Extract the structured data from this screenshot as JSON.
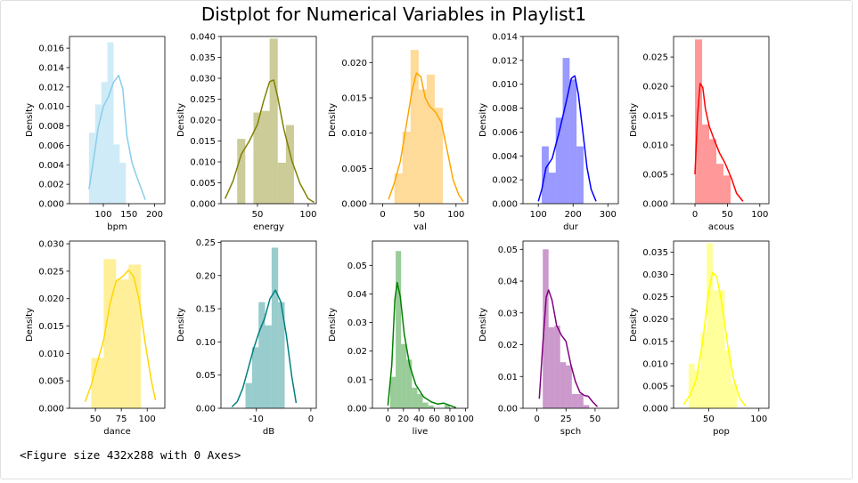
{
  "figure": {
    "title": "Distplot for Numerical Variables in Playlist1",
    "console_text": "<Figure size 432x288 with 0 Axes>"
  },
  "chart_data": [
    {
      "type": "area",
      "xlabel": "bpm",
      "ylabel": "Density",
      "color": "#87ceeb",
      "xlim": [
        34,
        220
      ],
      "ylim": [
        0,
        0.0172
      ],
      "xticks": [
        100,
        150,
        200
      ],
      "ytick_labels": [
        "0.000",
        "0.002",
        "0.004",
        "0.006",
        "0.008",
        "0.010",
        "0.012",
        "0.014",
        "0.016"
      ],
      "bins": [
        [
          72,
          0.0073
        ],
        [
          84,
          0.0102
        ],
        [
          96,
          0.0125
        ],
        [
          108,
          0.0166
        ],
        [
          120,
          0.0061
        ],
        [
          132,
          0.0042
        ],
        [
          144,
          0
        ]
      ],
      "bin_end": 156,
      "kde": [
        [
          72,
          0.0015
        ],
        [
          80,
          0.0042
        ],
        [
          90,
          0.0078
        ],
        [
          100,
          0.01
        ],
        [
          110,
          0.011
        ],
        [
          120,
          0.0125
        ],
        [
          130,
          0.0132
        ],
        [
          138,
          0.0118
        ],
        [
          146,
          0.007
        ],
        [
          156,
          0.0042
        ],
        [
          165,
          0.0028
        ],
        [
          175,
          0.0014
        ],
        [
          182,
          0.0004
        ]
      ]
    },
    {
      "type": "area",
      "xlabel": "energy",
      "ylabel": "Density",
      "color": "#808000",
      "xlim": [
        14,
        108
      ],
      "ylim": [
        0,
        0.04
      ],
      "xticks": [
        50,
        100
      ],
      "ytick_labels": [
        "0.000",
        "0.005",
        "0.010",
        "0.015",
        "0.020",
        "0.025",
        "0.030",
        "0.035",
        "0.040"
      ],
      "bins": [
        [
          30,
          0.0155
        ],
        [
          38,
          0
        ],
        [
          46,
          0.0218
        ],
        [
          54,
          0.0222
        ],
        [
          62,
          0.0395
        ],
        [
          70,
          0.0098
        ],
        [
          78,
          0.0188
        ]
      ],
      "bin_end": 86,
      "kde": [
        [
          18,
          0.0012
        ],
        [
          26,
          0.0055
        ],
        [
          34,
          0.0118
        ],
        [
          42,
          0.015
        ],
        [
          50,
          0.019
        ],
        [
          56,
          0.0245
        ],
        [
          62,
          0.0292
        ],
        [
          66,
          0.0296
        ],
        [
          70,
          0.0255
        ],
        [
          76,
          0.0178
        ],
        [
          84,
          0.0102
        ],
        [
          92,
          0.0048
        ],
        [
          100,
          0.0012
        ],
        [
          106,
          0.0003
        ]
      ]
    },
    {
      "type": "area",
      "xlabel": "val",
      "ylabel": "Density",
      "color": "#ffa500",
      "xlim": [
        -14,
        116
      ],
      "ylim": [
        0,
        0.0237
      ],
      "xticks": [
        0,
        50,
        100
      ],
      "ytick_labels": [
        "0.000",
        "0.005",
        "0.010",
        "0.015",
        "0.020"
      ],
      "bins": [
        [
          16,
          0.0043
        ],
        [
          27,
          0.0102
        ],
        [
          38,
          0.0218
        ],
        [
          49,
          0.0162
        ],
        [
          60,
          0.0183
        ],
        [
          71,
          0.0136
        ]
      ],
      "bin_end": 82,
      "kde": [
        [
          8,
          0.0006
        ],
        [
          16,
          0.003
        ],
        [
          24,
          0.006
        ],
        [
          32,
          0.011
        ],
        [
          40,
          0.016
        ],
        [
          46,
          0.0185
        ],
        [
          52,
          0.018
        ],
        [
          58,
          0.015
        ],
        [
          64,
          0.0138
        ],
        [
          72,
          0.013
        ],
        [
          80,
          0.0115
        ],
        [
          88,
          0.0075
        ],
        [
          96,
          0.0034
        ],
        [
          104,
          0.0012
        ],
        [
          110,
          0.0003
        ]
      ]
    },
    {
      "type": "area",
      "xlabel": "dur",
      "ylabel": "Density",
      "color": "#0000ff",
      "xlim": [
        56,
        330
      ],
      "ylim": [
        0,
        0.014
      ],
      "xticks": [
        100,
        200,
        300
      ],
      "ytick_labels": [
        "0.000",
        "0.002",
        "0.004",
        "0.006",
        "0.008",
        "0.010",
        "0.012",
        "0.014"
      ],
      "bins": [
        [
          110,
          0.0048
        ],
        [
          130,
          0.0026
        ],
        [
          150,
          0.0072
        ],
        [
          170,
          0.0122
        ],
        [
          190,
          0.0104
        ],
        [
          210,
          0.0048
        ],
        [
          230,
          0
        ]
      ],
      "bin_end": 250,
      "kde": [
        [
          100,
          0.0002
        ],
        [
          110,
          0.0012
        ],
        [
          122,
          0.003
        ],
        [
          140,
          0.0038
        ],
        [
          160,
          0.006
        ],
        [
          180,
          0.0085
        ],
        [
          195,
          0.0105
        ],
        [
          205,
          0.0107
        ],
        [
          215,
          0.0092
        ],
        [
          228,
          0.006
        ],
        [
          240,
          0.003
        ],
        [
          252,
          0.0012
        ],
        [
          266,
          0.0002
        ]
      ]
    },
    {
      "type": "area",
      "xlabel": "acous",
      "ylabel": "Density",
      "color": "#ff0000",
      "xlim": [
        -33,
        114
      ],
      "ylim": [
        0,
        0.0285
      ],
      "xticks": [
        0,
        50,
        100
      ],
      "ytick_labels": [
        "0.000",
        "0.005",
        "0.010",
        "0.015",
        "0.020",
        "0.025"
      ],
      "bins": [
        [
          0,
          0.028
        ],
        [
          11,
          0.0135
        ],
        [
          22,
          0.011
        ],
        [
          33,
          0.0068
        ],
        [
          44,
          0.0048
        ]
      ],
      "bin_end": 55,
      "kde": [
        [
          0,
          0.005
        ],
        [
          4,
          0.015
        ],
        [
          8,
          0.0205
        ],
        [
          12,
          0.0198
        ],
        [
          16,
          0.0162
        ],
        [
          22,
          0.0132
        ],
        [
          30,
          0.0108
        ],
        [
          38,
          0.0086
        ],
        [
          46,
          0.007
        ],
        [
          56,
          0.0044
        ],
        [
          64,
          0.0018
        ],
        [
          74,
          0.0004
        ]
      ]
    },
    {
      "type": "area",
      "xlabel": "dance",
      "ylabel": "Density",
      "color": "#ffd700",
      "xlim": [
        25,
        117
      ],
      "ylim": [
        0,
        0.0305
      ],
      "xticks": [
        50,
        75,
        100
      ],
      "ytick_labels": [
        "0.000",
        "0.005",
        "0.010",
        "0.015",
        "0.020",
        "0.025",
        "0.030"
      ],
      "bins": [
        [
          46,
          0.0092
        ],
        [
          58,
          0.0272
        ],
        [
          70,
          0.0235
        ],
        [
          82,
          0.0262
        ],
        [
          94,
          0
        ]
      ],
      "bin_end": 106,
      "kde": [
        [
          40,
          0.0012
        ],
        [
          46,
          0.0042
        ],
        [
          52,
          0.0085
        ],
        [
          58,
          0.0125
        ],
        [
          64,
          0.019
        ],
        [
          70,
          0.0232
        ],
        [
          76,
          0.024
        ],
        [
          82,
          0.0252
        ],
        [
          87,
          0.024
        ],
        [
          92,
          0.02
        ],
        [
          98,
          0.012
        ],
        [
          104,
          0.005
        ],
        [
          108,
          0.0015
        ]
      ]
    },
    {
      "type": "area",
      "xlabel": "dB",
      "ylabel": "Density",
      "color": "#008080",
      "xlim": [
        -16.5,
        1
      ],
      "ylim": [
        0,
        0.252
      ],
      "xticks": [
        -10,
        0
      ],
      "ytick_labels": [
        "0.00",
        "0.05",
        "0.10",
        "0.15",
        "0.20",
        "0.25"
      ],
      "bins": [
        [
          -12,
          0.038
        ],
        [
          -10.8,
          0.092
        ],
        [
          -9.6,
          0.16
        ],
        [
          -8.4,
          0.125
        ],
        [
          -7.2,
          0.242
        ],
        [
          -6,
          0.16
        ]
      ],
      "bin_end": -4.8,
      "kde": [
        [
          -14.5,
          0.002
        ],
        [
          -13.5,
          0.01
        ],
        [
          -12.5,
          0.03
        ],
        [
          -11.5,
          0.06
        ],
        [
          -10.5,
          0.09
        ],
        [
          -9.5,
          0.115
        ],
        [
          -8.5,
          0.135
        ],
        [
          -7.5,
          0.165
        ],
        [
          -6.5,
          0.178
        ],
        [
          -5.5,
          0.16
        ],
        [
          -4.5,
          0.11
        ],
        [
          -3.5,
          0.048
        ],
        [
          -2.7,
          0.008
        ]
      ]
    },
    {
      "type": "area",
      "xlabel": "live",
      "ylabel": "Density",
      "color": "#008000",
      "xlim": [
        -20,
        103
      ],
      "ylim": [
        0,
        0.0585
      ],
      "xticks": [
        0,
        20,
        40,
        60,
        80,
        100
      ],
      "ytick_labels": [
        "0.00",
        "0.01",
        "0.02",
        "0.03",
        "0.04",
        "0.05"
      ],
      "bins": [
        [
          3,
          0.011
        ],
        [
          10,
          0.055
        ],
        [
          17,
          0.0225
        ],
        [
          24,
          0.017
        ],
        [
          31,
          0.0072
        ],
        [
          38,
          0.005
        ],
        [
          45,
          0.002
        ],
        [
          52,
          0.001
        ],
        [
          59,
          0
        ],
        [
          66,
          0
        ],
        [
          73,
          0.0012
        ]
      ],
      "bin_end": 80,
      "kde": [
        [
          0,
          0.001
        ],
        [
          5,
          0.015
        ],
        [
          9,
          0.038
        ],
        [
          12,
          0.044
        ],
        [
          16,
          0.039
        ],
        [
          21,
          0.026
        ],
        [
          28,
          0.015
        ],
        [
          36,
          0.0082
        ],
        [
          46,
          0.004
        ],
        [
          56,
          0.0022
        ],
        [
          64,
          0.0015
        ],
        [
          72,
          0.0018
        ],
        [
          80,
          0.001
        ],
        [
          88,
          0.0002
        ]
      ]
    },
    {
      "type": "area",
      "xlabel": "spch",
      "ylabel": "Density",
      "color": "#800080",
      "xlim": [
        -12,
        70
      ],
      "ylim": [
        0,
        0.0526
      ],
      "xticks": [
        0,
        25,
        50
      ],
      "ytick_labels": [
        "0.00",
        "0.01",
        "0.02",
        "0.03",
        "0.04",
        "0.05"
      ],
      "bins": [
        [
          5,
          0.05
        ],
        [
          10,
          0.0255
        ],
        [
          15,
          0.026
        ],
        [
          20,
          0.0145
        ],
        [
          25,
          0.0135
        ],
        [
          30,
          0.0045
        ],
        [
          35,
          0.0045
        ],
        [
          40,
          0.001
        ]
      ],
      "bin_end": 45,
      "kde": [
        [
          2,
          0.003
        ],
        [
          5,
          0.02
        ],
        [
          8,
          0.035
        ],
        [
          10,
          0.0372
        ],
        [
          13,
          0.034
        ],
        [
          17,
          0.026
        ],
        [
          21,
          0.023
        ],
        [
          25,
          0.021
        ],
        [
          29,
          0.014
        ],
        [
          33,
          0.0085
        ],
        [
          37,
          0.005
        ],
        [
          41,
          0.004
        ],
        [
          44,
          0.0038
        ],
        [
          48,
          0.002
        ],
        [
          52,
          0.0005
        ]
      ]
    },
    {
      "type": "area",
      "xlabel": "pop",
      "ylabel": "Density",
      "color": "#ffff00",
      "xlim": [
        15,
        110
      ],
      "ylim": [
        0,
        0.0375
      ],
      "xticks": [
        50,
        100
      ],
      "ytick_labels": [
        "0.000",
        "0.005",
        "0.010",
        "0.015",
        "0.020",
        "0.025",
        "0.030",
        "0.035"
      ],
      "bins": [
        [
          30,
          0.01
        ],
        [
          36,
          0.0085
        ],
        [
          42,
          0.017
        ],
        [
          48,
          0.037
        ],
        [
          54,
          0.0265
        ],
        [
          60,
          0.0265
        ],
        [
          66,
          0.013
        ],
        [
          72,
          0.0055
        ]
      ],
      "bin_end": 78,
      "kde": [
        [
          25,
          0.0008
        ],
        [
          32,
          0.0032
        ],
        [
          38,
          0.0068
        ],
        [
          44,
          0.015
        ],
        [
          50,
          0.0262
        ],
        [
          54,
          0.0305
        ],
        [
          58,
          0.0295
        ],
        [
          62,
          0.025
        ],
        [
          66,
          0.019
        ],
        [
          70,
          0.0125
        ],
        [
          75,
          0.0065
        ],
        [
          81,
          0.0022
        ],
        [
          87,
          0.0004
        ]
      ]
    }
  ]
}
